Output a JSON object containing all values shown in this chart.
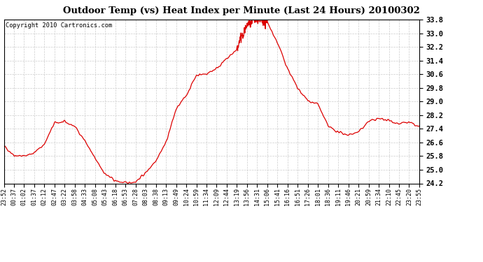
{
  "title": "Outdoor Temp (vs) Heat Index per Minute (Last 24 Hours) 20100302",
  "copyright": "Copyright 2010 Cartronics.com",
  "line_color": "#dd0000",
  "background_color": "#ffffff",
  "grid_color": "#cccccc",
  "ylim": [
    24.2,
    33.8
  ],
  "yticks": [
    24.2,
    25.0,
    25.8,
    26.6,
    27.4,
    28.2,
    29.0,
    29.8,
    30.6,
    31.4,
    32.2,
    33.0,
    33.8
  ],
  "xtick_labels": [
    "23:52",
    "00:37",
    "01:02",
    "01:37",
    "02:12",
    "02:47",
    "03:22",
    "03:58",
    "04:33",
    "05:08",
    "05:43",
    "06:18",
    "06:53",
    "07:28",
    "08:03",
    "08:38",
    "09:13",
    "09:49",
    "10:24",
    "10:59",
    "11:34",
    "12:09",
    "12:44",
    "13:19",
    "13:56",
    "14:31",
    "15:06",
    "15:41",
    "16:16",
    "16:51",
    "17:26",
    "18:01",
    "18:36",
    "19:11",
    "19:46",
    "20:21",
    "20:59",
    "21:34",
    "22:10",
    "22:45",
    "23:20",
    "23:55"
  ],
  "keypoints_x": [
    0,
    1,
    2,
    3,
    4,
    5,
    6,
    7,
    8,
    9,
    10,
    11,
    12,
    13,
    14,
    15,
    16,
    17,
    18,
    19,
    20,
    21,
    22,
    23,
    24,
    25,
    26,
    27,
    28,
    29,
    30,
    31,
    32,
    33,
    34,
    35,
    36,
    37,
    38,
    39,
    40,
    41
  ],
  "keypoints_y": [
    26.4,
    25.85,
    25.8,
    26.0,
    26.5,
    27.75,
    27.8,
    27.55,
    26.7,
    25.65,
    24.75,
    24.35,
    24.22,
    24.3,
    24.82,
    25.55,
    26.6,
    28.55,
    29.35,
    30.55,
    30.62,
    30.95,
    31.5,
    32.05,
    33.5,
    33.8,
    33.65,
    32.45,
    30.95,
    29.75,
    29.05,
    28.85,
    27.55,
    27.2,
    27.05,
    27.2,
    27.85,
    28.0,
    27.9,
    27.7,
    27.78,
    27.5
  ]
}
